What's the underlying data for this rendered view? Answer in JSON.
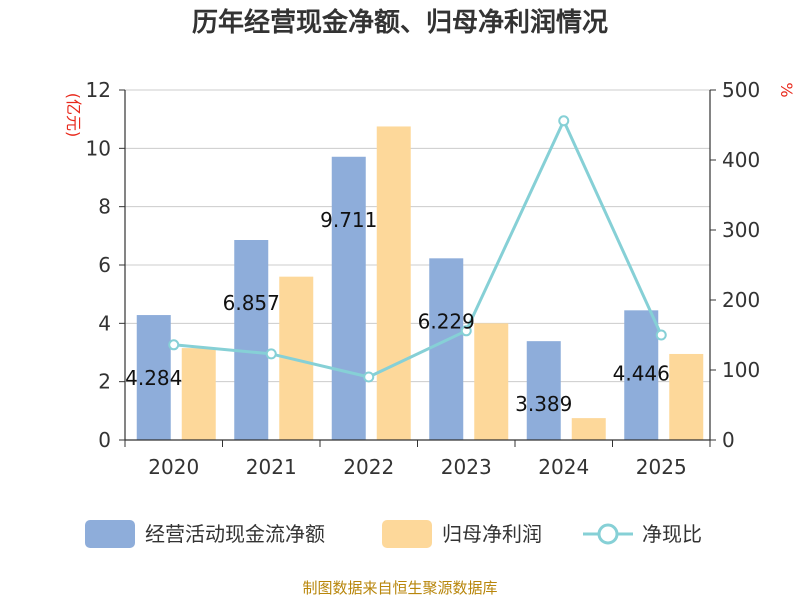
{
  "chart_data": {
    "type": "bar+line",
    "title": "历年经营现金净额、归母净利润情况",
    "categories": [
      "2020",
      "2021",
      "2022",
      "2023",
      "2024",
      "2025"
    ],
    "left_axis": {
      "label": "(亿元)",
      "range": [
        0,
        12
      ],
      "ticks": [
        0,
        2,
        4,
        6,
        8,
        10,
        12
      ]
    },
    "right_axis": {
      "label": "%",
      "range": [
        0,
        500
      ],
      "ticks": [
        0,
        100,
        200,
        300,
        400,
        500
      ]
    },
    "series": [
      {
        "name": "经营活动现金流净额",
        "type": "bar",
        "axis": "left",
        "color": "#8eadda",
        "values": [
          4.284,
          6.857,
          9.711,
          6.229,
          3.389,
          4.446
        ],
        "labels": [
          "4.284",
          "6.857",
          "9.711",
          "6.229",
          "3.389",
          "4.446"
        ]
      },
      {
        "name": "归母净利润",
        "type": "bar",
        "axis": "left",
        "color": "#fdd89a",
        "values": [
          3.15,
          5.6,
          10.75,
          4.0,
          0.75,
          2.95
        ]
      },
      {
        "name": "净现比",
        "type": "line",
        "axis": "right",
        "color": "#86d0d6",
        "values": [
          136,
          123,
          90,
          156,
          456,
          150
        ]
      }
    ],
    "grid": true,
    "legend_position": "bottom"
  },
  "source": "制图数据来自恒生聚源数据库"
}
